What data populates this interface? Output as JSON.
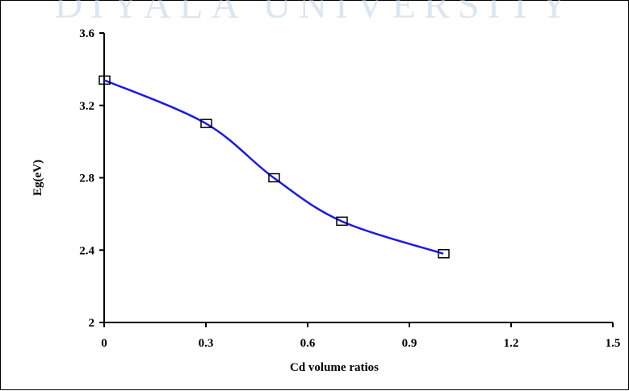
{
  "watermark": {
    "text": "DIYALA UNIVERSITY"
  },
  "colors": {
    "line": "#1a1ae6",
    "axis": "#000000",
    "marker": "#000000",
    "watermark": "#bcd3e6"
  },
  "chart_data": {
    "type": "line",
    "title": "",
    "xlabel": "Cd volume ratios",
    "ylabel": "Eg(eV)",
    "xlim": [
      0,
      1.5
    ],
    "ylim": [
      2,
      3.6
    ],
    "xticks": [
      "0",
      "0.3",
      "0.6",
      "0.9",
      "1.2",
      "1.5"
    ],
    "yticks": [
      "2",
      "2.4",
      "2.8",
      "3.2",
      "3.6"
    ],
    "grid": false,
    "legend": "none",
    "marker": "open-square",
    "smooth": true,
    "series": [
      {
        "x": [
          0,
          0.3,
          0.5,
          0.7,
          1.0
        ],
        "y": [
          3.34,
          3.1,
          2.8,
          2.56,
          2.38
        ]
      }
    ]
  }
}
